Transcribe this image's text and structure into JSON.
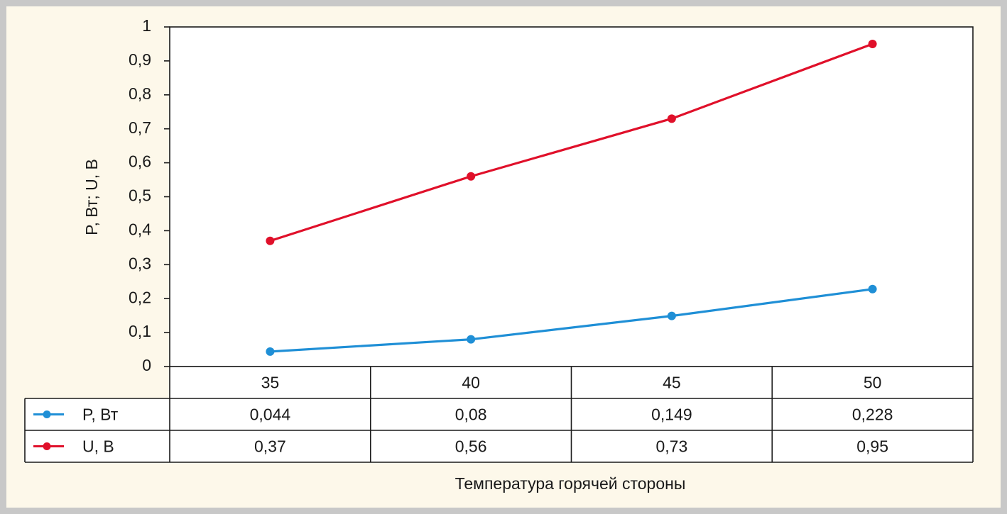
{
  "chart_data": {
    "type": "line",
    "ylabel": "P, Вт; U, В",
    "xlabel": "Температура горячей стороны",
    "ylim": [
      0,
      1
    ],
    "yticks": [
      "0",
      "0,1",
      "0,2",
      "0,3",
      "0,4",
      "0,5",
      "0,6",
      "0,7",
      "0,8",
      "0,9",
      "1"
    ],
    "categories": [
      "35",
      "40",
      "45",
      "50"
    ],
    "legend_placement": "data-table",
    "grid": false,
    "series": [
      {
        "name": "P, Вт",
        "color": "#1f8fd6",
        "values": [
          0.044,
          0.08,
          0.149,
          0.228
        ],
        "labels": [
          "0,044",
          "0,08",
          "0,149",
          "0,228"
        ]
      },
      {
        "name": "U, В",
        "color": "#e0102a",
        "values": [
          0.37,
          0.56,
          0.73,
          0.95
        ],
        "labels": [
          "0,37",
          "0,56",
          "0,73",
          "0,95"
        ]
      }
    ]
  }
}
